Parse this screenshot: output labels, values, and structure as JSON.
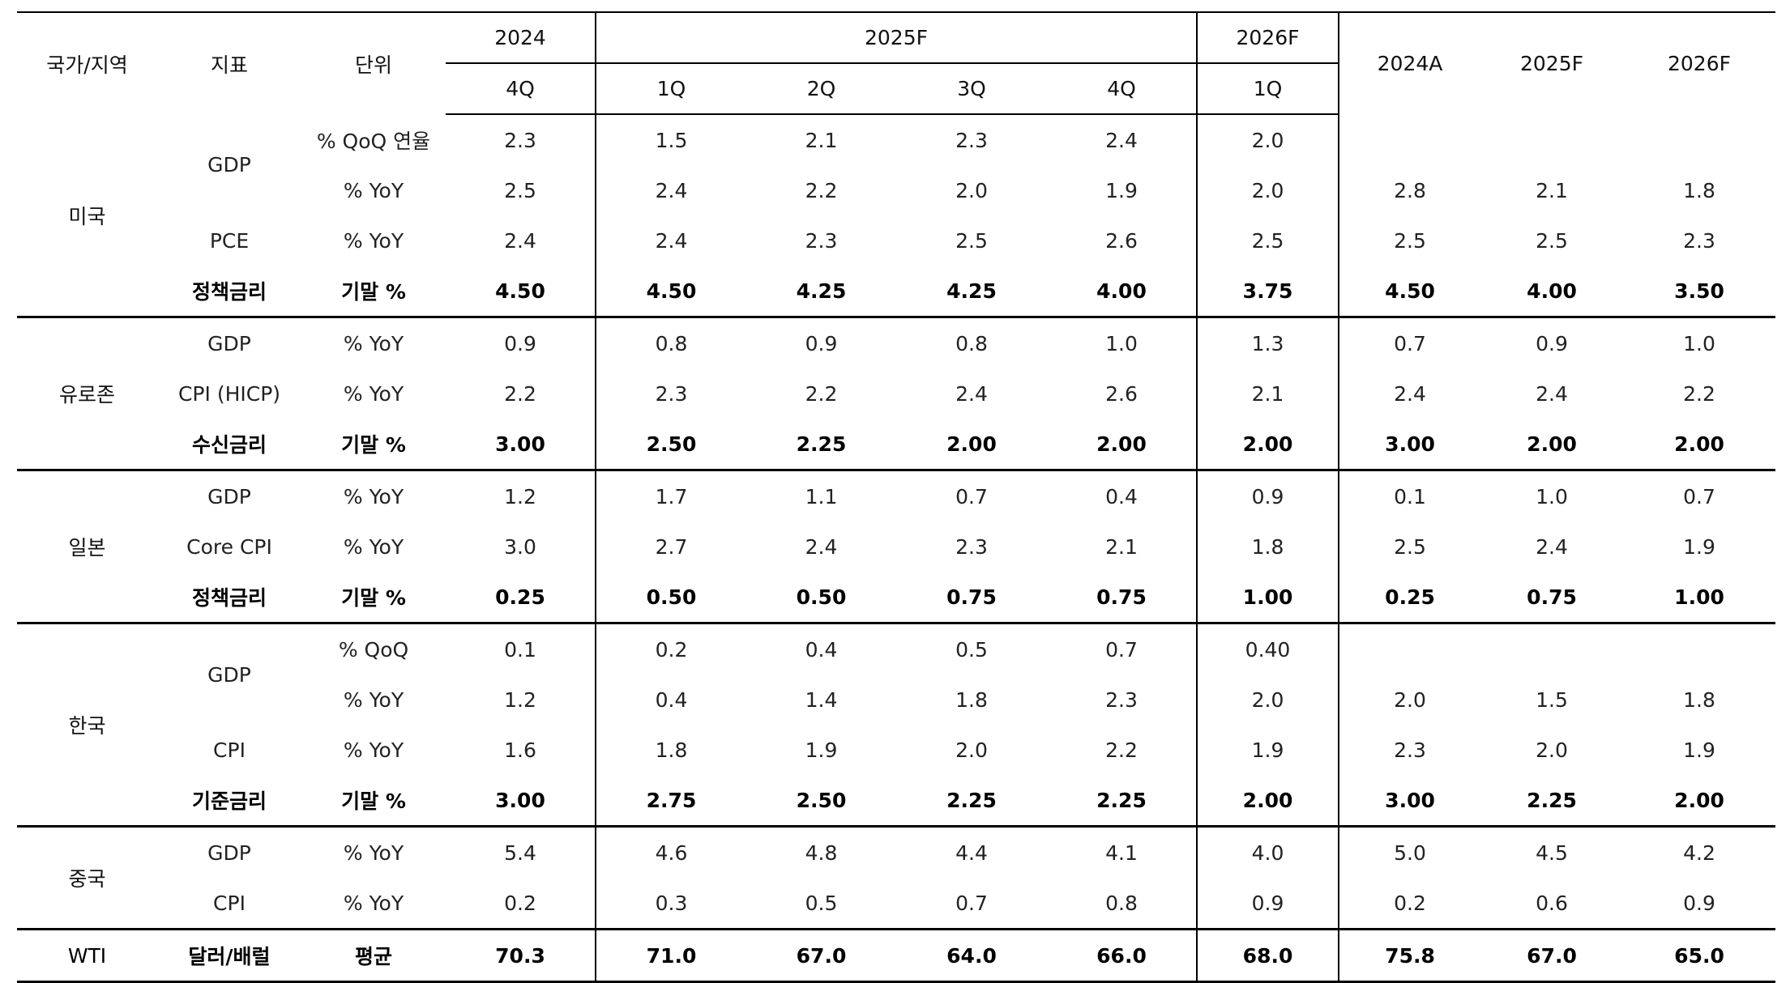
{
  "header": {
    "region_label": "국가/지역",
    "indicator_label": "지표",
    "unit_label": "단위",
    "year_2024": "2024",
    "year_2025f": "2025F",
    "year_2026f": "2026F",
    "q4_2024": "4Q",
    "q1_2025": "1Q",
    "q2_2025": "2Q",
    "q3_2025": "3Q",
    "q4_2025": "4Q",
    "q1_2026": "1Q",
    "annual_2024a": "2024A",
    "annual_2025f": "2025F",
    "annual_2026f": "2026F"
  },
  "groups": [
    {
      "region": "미국",
      "rows": [
        {
          "indicator": "GDP",
          "unit": "% QoQ 연율",
          "q": [
            "2.3",
            "1.5",
            "2.1",
            "2.3",
            "2.4",
            "2.0"
          ],
          "annual": [
            "",
            "",
            ""
          ],
          "bold": false
        },
        {
          "indicator": "",
          "unit": "% YoY",
          "q": [
            "2.5",
            "2.4",
            "2.2",
            "2.0",
            "1.9",
            "2.0"
          ],
          "annual": [
            "2.8",
            "2.1",
            "1.8"
          ],
          "bold": false
        },
        {
          "indicator": "PCE",
          "unit": "% YoY",
          "q": [
            "2.4",
            "2.4",
            "2.3",
            "2.5",
            "2.6",
            "2.5"
          ],
          "annual": [
            "2.5",
            "2.5",
            "2.3"
          ],
          "bold": false
        },
        {
          "indicator": "정책금리",
          "unit": "기말 %",
          "q": [
            "4.50",
            "4.50",
            "4.25",
            "4.25",
            "4.00",
            "3.75"
          ],
          "annual": [
            "4.50",
            "4.00",
            "3.50"
          ],
          "bold": true
        }
      ]
    },
    {
      "region": "유로존",
      "rows": [
        {
          "indicator": "GDP",
          "unit": "% YoY",
          "q": [
            "0.9",
            "0.8",
            "0.9",
            "0.8",
            "1.0",
            "1.3"
          ],
          "annual": [
            "0.7",
            "0.9",
            "1.0"
          ],
          "bold": false
        },
        {
          "indicator": "CPI (HICP)",
          "unit": "% YoY",
          "q": [
            "2.2",
            "2.3",
            "2.2",
            "2.4",
            "2.6",
            "2.1"
          ],
          "annual": [
            "2.4",
            "2.4",
            "2.2"
          ],
          "bold": false
        },
        {
          "indicator": "수신금리",
          "unit": "기말 %",
          "q": [
            "3.00",
            "2.50",
            "2.25",
            "2.00",
            "2.00",
            "2.00"
          ],
          "annual": [
            "3.00",
            "2.00",
            "2.00"
          ],
          "bold": true
        }
      ]
    },
    {
      "region": "일본",
      "rows": [
        {
          "indicator": "GDP",
          "unit": "% YoY",
          "q": [
            "1.2",
            "1.7",
            "1.1",
            "0.7",
            "0.4",
            "0.9"
          ],
          "annual": [
            "0.1",
            "1.0",
            "0.7"
          ],
          "bold": false
        },
        {
          "indicator": "Core CPI",
          "unit": "% YoY",
          "q": [
            "3.0",
            "2.7",
            "2.4",
            "2.3",
            "2.1",
            "1.8"
          ],
          "annual": [
            "2.5",
            "2.4",
            "1.9"
          ],
          "bold": false
        },
        {
          "indicator": "정책금리",
          "unit": "기말 %",
          "q": [
            "0.25",
            "0.50",
            "0.50",
            "0.75",
            "0.75",
            "1.00"
          ],
          "annual": [
            "0.25",
            "0.75",
            "1.00"
          ],
          "bold": true
        }
      ]
    },
    {
      "region": "한국",
      "rows": [
        {
          "indicator": "GDP",
          "unit": "% QoQ",
          "q": [
            "0.1",
            "0.2",
            "0.4",
            "0.5",
            "0.7",
            "0.40"
          ],
          "annual": [
            "",
            "",
            ""
          ],
          "bold": false
        },
        {
          "indicator": "",
          "unit": "% YoY",
          "q": [
            "1.2",
            "0.4",
            "1.4",
            "1.8",
            "2.3",
            "2.0"
          ],
          "annual": [
            "2.0",
            "1.5",
            "1.8"
          ],
          "bold": false
        },
        {
          "indicator": "CPI",
          "unit": "% YoY",
          "q": [
            "1.6",
            "1.8",
            "1.9",
            "2.0",
            "2.2",
            "1.9"
          ],
          "annual": [
            "2.3",
            "2.0",
            "1.9"
          ],
          "bold": false
        },
        {
          "indicator": "기준금리",
          "unit": "기말 %",
          "q": [
            "3.00",
            "2.75",
            "2.50",
            "2.25",
            "2.25",
            "2.00"
          ],
          "annual": [
            "3.00",
            "2.25",
            "2.00"
          ],
          "bold": true
        }
      ]
    },
    {
      "region": "중국",
      "rows": [
        {
          "indicator": "GDP",
          "unit": "% YoY",
          "q": [
            "5.4",
            "4.6",
            "4.8",
            "4.4",
            "4.1",
            "4.0"
          ],
          "annual": [
            "5.0",
            "4.5",
            "4.2"
          ],
          "bold": false
        },
        {
          "indicator": "CPI",
          "unit": "% YoY",
          "q": [
            "0.2",
            "0.3",
            "0.5",
            "0.7",
            "0.8",
            "0.9"
          ],
          "annual": [
            "0.2",
            "0.6",
            "0.9"
          ],
          "bold": false
        }
      ]
    },
    {
      "region": "WTI",
      "rows": [
        {
          "indicator": "달러/배럴",
          "unit": "평균",
          "q": [
            "70.3",
            "71.0",
            "67.0",
            "64.0",
            "66.0",
            "68.0"
          ],
          "annual": [
            "75.8",
            "67.0",
            "65.0"
          ],
          "bold": true
        }
      ]
    }
  ]
}
